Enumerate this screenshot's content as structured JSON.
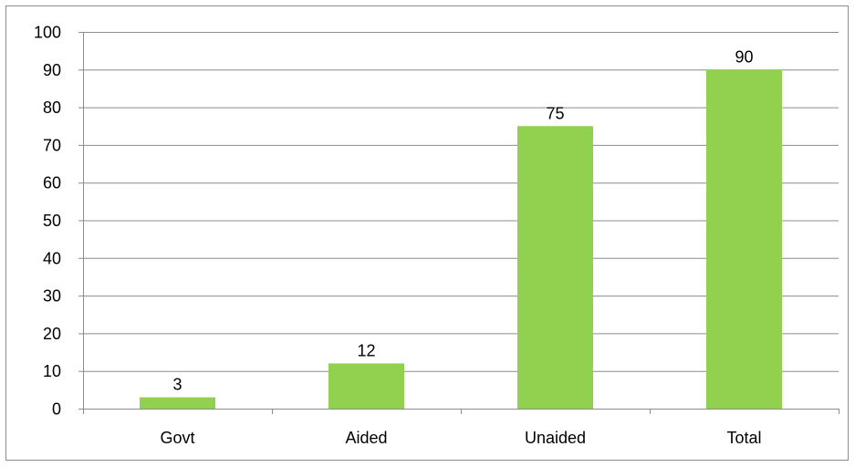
{
  "chart_data": {
    "type": "bar",
    "categories": [
      "Govt",
      "Aided",
      "Unaided",
      "Total"
    ],
    "values": [
      3,
      12,
      75,
      90
    ],
    "data_labels": [
      "3",
      "12",
      "75",
      "90"
    ],
    "ylim": [
      0,
      100
    ],
    "yticks": [
      0,
      10,
      20,
      30,
      40,
      50,
      60,
      70,
      80,
      90,
      100
    ],
    "ytick_labels": [
      "0",
      "10",
      "20",
      "30",
      "40",
      "50",
      "60",
      "70",
      "80",
      "90",
      "100"
    ],
    "grid": true,
    "legend": "none",
    "bar_color": "#92d050"
  }
}
